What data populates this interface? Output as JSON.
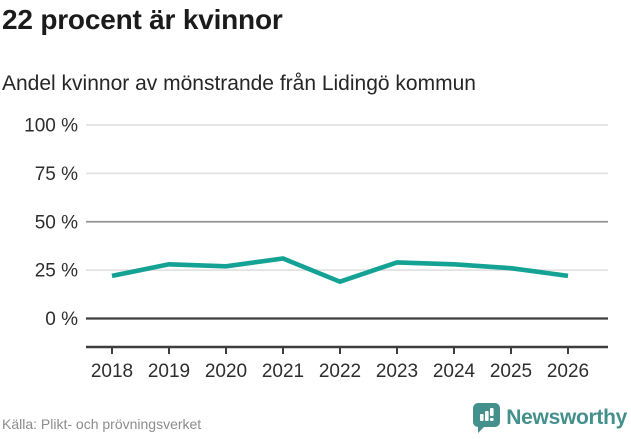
{
  "header": {
    "title": "22 procent är kvinnor",
    "subtitle": "Andel kvinnor av mönstrande från Lidingö kommun"
  },
  "chart_data": {
    "type": "line",
    "title": "22 procent är kvinnor",
    "subtitle": "Andel kvinnor av mönstrande från Lidingö kommun",
    "categories": [
      "2018",
      "2019",
      "2020",
      "2021",
      "2022",
      "2023",
      "2024",
      "2025",
      "2026"
    ],
    "values": [
      22,
      28,
      27,
      31,
      19,
      29,
      28,
      26,
      22
    ],
    "xlabel": "",
    "ylabel": "",
    "ylim": [
      0,
      100
    ],
    "yticks": [
      0,
      25,
      50,
      75,
      100
    ],
    "ytick_labels": [
      "0 %",
      "25 %",
      "50 %",
      "75 %",
      "100 %"
    ],
    "grid": true,
    "legend": "none",
    "line_color": "#14a295"
  },
  "footer": {
    "source": "Källa: Plikt- och prövningsverket",
    "brand": "Newsworthy"
  },
  "colors": {
    "line": "#14a295",
    "brand_teal": "#44908d",
    "grid_light": "#e2e2e2",
    "grid_mid": "#949494",
    "axis_dark": "#3d3d3d",
    "tick_text": "#2e2e2e",
    "title_text": "#1b1b1b",
    "source_text": "#8c8c8c"
  }
}
